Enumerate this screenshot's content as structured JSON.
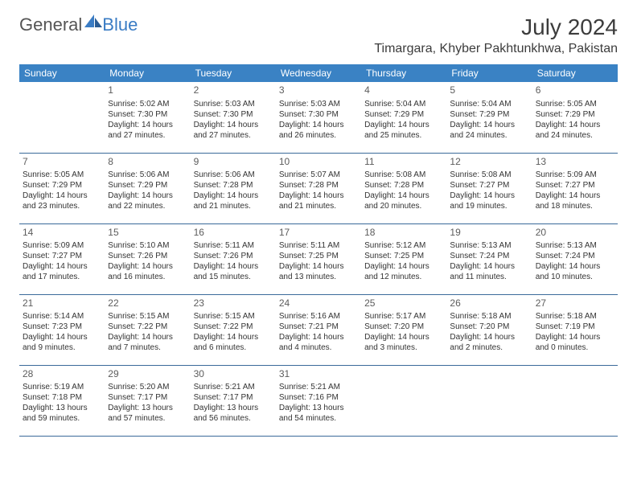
{
  "logo": {
    "general": "General",
    "blue": "Blue"
  },
  "title": "July 2024",
  "location": "Timargara, Khyber Pakhtunkhwa, Pakistan",
  "colors": {
    "header_bg": "#3a82c4",
    "header_text": "#ffffff",
    "cell_border": "#3a6a9a",
    "logo_gray": "#555555",
    "logo_blue": "#3a7cc4",
    "text": "#333333",
    "daynum": "#5c5c5c"
  },
  "day_headers": [
    "Sunday",
    "Monday",
    "Tuesday",
    "Wednesday",
    "Thursday",
    "Friday",
    "Saturday"
  ],
  "weeks": [
    [
      null,
      {
        "n": "1",
        "sr": "5:02 AM",
        "ss": "7:30 PM",
        "dl": "14 hours and 27 minutes."
      },
      {
        "n": "2",
        "sr": "5:03 AM",
        "ss": "7:30 PM",
        "dl": "14 hours and 27 minutes."
      },
      {
        "n": "3",
        "sr": "5:03 AM",
        "ss": "7:30 PM",
        "dl": "14 hours and 26 minutes."
      },
      {
        "n": "4",
        "sr": "5:04 AM",
        "ss": "7:29 PM",
        "dl": "14 hours and 25 minutes."
      },
      {
        "n": "5",
        "sr": "5:04 AM",
        "ss": "7:29 PM",
        "dl": "14 hours and 24 minutes."
      },
      {
        "n": "6",
        "sr": "5:05 AM",
        "ss": "7:29 PM",
        "dl": "14 hours and 24 minutes."
      }
    ],
    [
      {
        "n": "7",
        "sr": "5:05 AM",
        "ss": "7:29 PM",
        "dl": "14 hours and 23 minutes."
      },
      {
        "n": "8",
        "sr": "5:06 AM",
        "ss": "7:29 PM",
        "dl": "14 hours and 22 minutes."
      },
      {
        "n": "9",
        "sr": "5:06 AM",
        "ss": "7:28 PM",
        "dl": "14 hours and 21 minutes."
      },
      {
        "n": "10",
        "sr": "5:07 AM",
        "ss": "7:28 PM",
        "dl": "14 hours and 21 minutes."
      },
      {
        "n": "11",
        "sr": "5:08 AM",
        "ss": "7:28 PM",
        "dl": "14 hours and 20 minutes."
      },
      {
        "n": "12",
        "sr": "5:08 AM",
        "ss": "7:27 PM",
        "dl": "14 hours and 19 minutes."
      },
      {
        "n": "13",
        "sr": "5:09 AM",
        "ss": "7:27 PM",
        "dl": "14 hours and 18 minutes."
      }
    ],
    [
      {
        "n": "14",
        "sr": "5:09 AM",
        "ss": "7:27 PM",
        "dl": "14 hours and 17 minutes."
      },
      {
        "n": "15",
        "sr": "5:10 AM",
        "ss": "7:26 PM",
        "dl": "14 hours and 16 minutes."
      },
      {
        "n": "16",
        "sr": "5:11 AM",
        "ss": "7:26 PM",
        "dl": "14 hours and 15 minutes."
      },
      {
        "n": "17",
        "sr": "5:11 AM",
        "ss": "7:25 PM",
        "dl": "14 hours and 13 minutes."
      },
      {
        "n": "18",
        "sr": "5:12 AM",
        "ss": "7:25 PM",
        "dl": "14 hours and 12 minutes."
      },
      {
        "n": "19",
        "sr": "5:13 AM",
        "ss": "7:24 PM",
        "dl": "14 hours and 11 minutes."
      },
      {
        "n": "20",
        "sr": "5:13 AM",
        "ss": "7:24 PM",
        "dl": "14 hours and 10 minutes."
      }
    ],
    [
      {
        "n": "21",
        "sr": "5:14 AM",
        "ss": "7:23 PM",
        "dl": "14 hours and 9 minutes."
      },
      {
        "n": "22",
        "sr": "5:15 AM",
        "ss": "7:22 PM",
        "dl": "14 hours and 7 minutes."
      },
      {
        "n": "23",
        "sr": "5:15 AM",
        "ss": "7:22 PM",
        "dl": "14 hours and 6 minutes."
      },
      {
        "n": "24",
        "sr": "5:16 AM",
        "ss": "7:21 PM",
        "dl": "14 hours and 4 minutes."
      },
      {
        "n": "25",
        "sr": "5:17 AM",
        "ss": "7:20 PM",
        "dl": "14 hours and 3 minutes."
      },
      {
        "n": "26",
        "sr": "5:18 AM",
        "ss": "7:20 PM",
        "dl": "14 hours and 2 minutes."
      },
      {
        "n": "27",
        "sr": "5:18 AM",
        "ss": "7:19 PM",
        "dl": "14 hours and 0 minutes."
      }
    ],
    [
      {
        "n": "28",
        "sr": "5:19 AM",
        "ss": "7:18 PM",
        "dl": "13 hours and 59 minutes."
      },
      {
        "n": "29",
        "sr": "5:20 AM",
        "ss": "7:17 PM",
        "dl": "13 hours and 57 minutes."
      },
      {
        "n": "30",
        "sr": "5:21 AM",
        "ss": "7:17 PM",
        "dl": "13 hours and 56 minutes."
      },
      {
        "n": "31",
        "sr": "5:21 AM",
        "ss": "7:16 PM",
        "dl": "13 hours and 54 minutes."
      },
      null,
      null,
      null
    ]
  ],
  "labels": {
    "sunrise": "Sunrise:",
    "sunset": "Sunset:",
    "daylight": "Daylight:"
  }
}
